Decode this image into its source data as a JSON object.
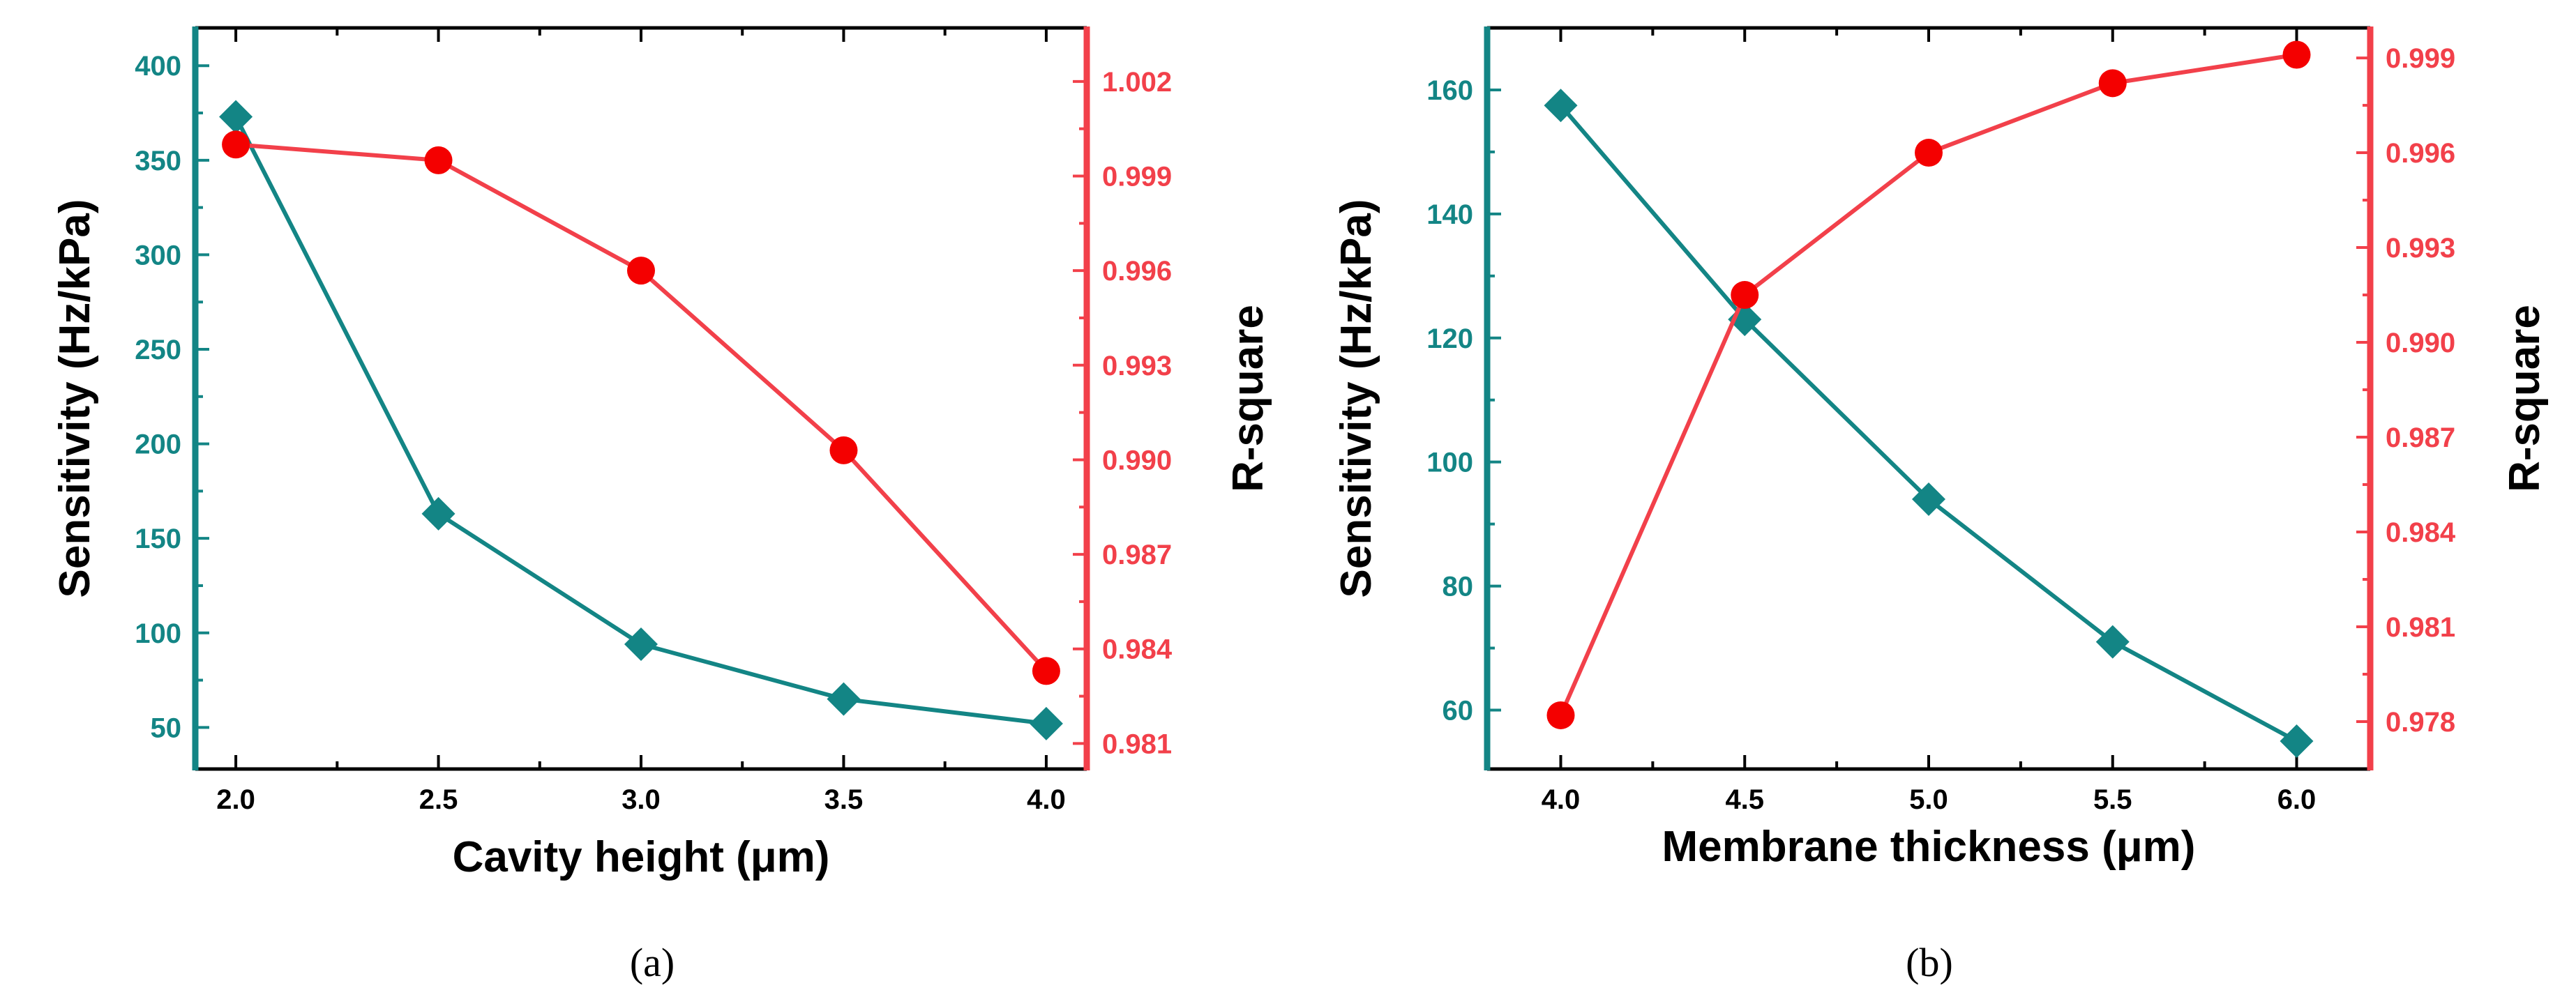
{
  "colors": {
    "left": "#138585",
    "right": "#f2404a",
    "marker_right": "#f40000",
    "frame": "#000000"
  },
  "chart_data": [
    {
      "type": "line",
      "caption": "(a)",
      "xlabel": "Cavity height (μm)",
      "ylabel": "Sensitivity (Hz/kPa)",
      "y2label": "R-square",
      "xlim": [
        1.9,
        4.1
      ],
      "ylim": [
        28,
        420
      ],
      "y2lim": [
        0.98019,
        1.0037
      ],
      "xticks": [
        2.0,
        2.5,
        3.0,
        3.5,
        4.0
      ],
      "xtick_labels": [
        "2.0",
        "2.5",
        "3.0",
        "3.5",
        "4.0"
      ],
      "yticks": [
        50,
        100,
        150,
        200,
        250,
        300,
        350,
        400
      ],
      "ytick_labels": [
        "50",
        "100",
        "150",
        "200",
        "250",
        "300",
        "350",
        "400"
      ],
      "y2ticks": [
        0.981,
        0.984,
        0.987,
        0.99,
        0.993,
        0.996,
        0.999,
        1.002
      ],
      "y2tick_labels": [
        "0.981",
        "0.984",
        "0.987",
        "0.990",
        "0.993",
        "0.996",
        "0.999",
        "1.002"
      ],
      "x": [
        2.0,
        2.5,
        3.0,
        3.5,
        4.0
      ],
      "series": [
        {
          "name": "Sensitivity",
          "axis": "left",
          "marker": "diamond",
          "values": [
            373,
            163,
            94,
            65,
            52
          ]
        },
        {
          "name": "R-square",
          "axis": "right",
          "marker": "circle",
          "values": [
            1.0,
            0.9995,
            0.996,
            0.9903,
            0.9833
          ]
        }
      ]
    },
    {
      "type": "line",
      "caption": "(b)",
      "xlabel": "Membrane thickness (μm)",
      "ylabel": "Sensitivity (Hz/kPa)",
      "y2label": "R-square",
      "xlim": [
        3.8,
        6.2
      ],
      "ylim": [
        50.5,
        170
      ],
      "y2lim": [
        0.9765,
        0.99995
      ],
      "xticks": [
        4.0,
        4.5,
        5.0,
        5.5,
        6.0
      ],
      "xtick_labels": [
        "4.0",
        "4.5",
        "5.0",
        "5.5",
        "6.0"
      ],
      "yticks": [
        60,
        80,
        100,
        120,
        140,
        160
      ],
      "ytick_labels": [
        "60",
        "80",
        "100",
        "120",
        "140",
        "160"
      ],
      "y2ticks": [
        0.978,
        0.981,
        0.984,
        0.987,
        0.99,
        0.993,
        0.996,
        0.999
      ],
      "y2tick_labels": [
        "0.978",
        "0.981",
        "0.984",
        "0.987",
        "0.990",
        "0.993",
        "0.996",
        "0.999"
      ],
      "x": [
        4.0,
        4.5,
        5.0,
        5.5,
        6.0
      ],
      "series": [
        {
          "name": "Sensitivity",
          "axis": "left",
          "marker": "diamond",
          "values": [
            157.5,
            123,
            94,
            71,
            55
          ]
        },
        {
          "name": "R-square",
          "axis": "right",
          "marker": "circle",
          "values": [
            0.9782,
            0.9915,
            0.996,
            0.9982,
            0.9991
          ]
        }
      ]
    }
  ]
}
